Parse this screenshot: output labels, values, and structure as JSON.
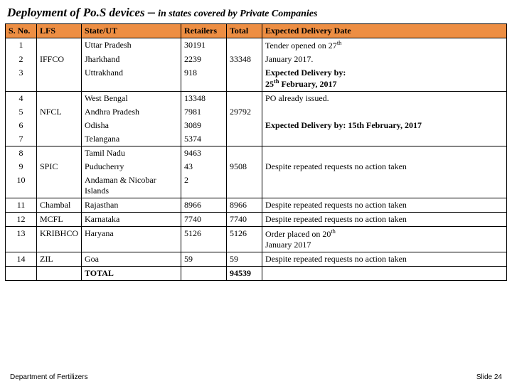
{
  "title_main": "Deployment of Po.S devices",
  "title_dash": "–",
  "title_sub": "in states covered by Private Companies",
  "headers": {
    "sno": "S. No.",
    "lfs": "LFS",
    "state": "State/UT",
    "retailers": "Retailers",
    "total": "Total",
    "expected": "Expected Delivery Date"
  },
  "rows": {
    "r1_sno": "1",
    "r1_state": "Uttar Pradesh",
    "r1_ret": "30191",
    "r2_sno": "2",
    "r2_state": "Jharkhand",
    "r2_ret": "2239",
    "r3_sno": "3",
    "r3_state": "Uttrakhand",
    "r3_ret": "918",
    "g1_lfs": "IFFCO",
    "g1_total": "33348",
    "g1_exp_l1": "Tender opened on 27",
    "g1_exp_l1s": "th",
    "g1_exp_l2": "January 2017.",
    "g1_exp_l3a": "Expected Delivery  by:",
    "g1_exp_l3b": "25",
    "g1_exp_l3bs": "th",
    "g1_exp_l3c": " February, 2017",
    "r4_sno": "4",
    "r4_state": "West Bengal",
    "r4_ret": "13348",
    "r5_sno": "5",
    "r5_state": "Andhra Pradesh",
    "r5_ret": "7981",
    "r6_sno": "6",
    "r6_state": "Odisha",
    "r6_ret": "3089",
    "r7_sno": "7",
    "r7_state": "Telangana",
    "r7_ret": "5374",
    "g2_lfs": "NFCL",
    "g2_total": "29792",
    "g2_exp_l1": "PO already issued.",
    "g2_exp_l2a": "Expected Delivery  by: 15th February, 2017",
    "r8_sno": "8",
    "r8_state": "Tamil Nadu",
    "r8_ret": "9463",
    "r9_sno": "9",
    "r9_state": "Puducherry",
    "r9_ret": "43",
    "r10_sno": "10",
    "r10_state": "Andaman & Nicobar Islands",
    "r10_ret": "2",
    "g3_lfs": "SPIC",
    "g3_total": "9508",
    "g3_exp": "Despite repeated requests no action taken",
    "r11_sno": "11",
    "r11_lfs": "Chambal",
    "r11_state": "Rajasthan",
    "r11_ret": "8966",
    "r11_total": "8966",
    "r11_exp": "Despite repeated requests no action taken",
    "r12_sno": "12",
    "r12_lfs": "MCFL",
    "r12_state": "Karnataka",
    "r12_ret": "7740",
    "r12_total": "7740",
    "r12_exp": "Despite repeated requests no action taken",
    "r13_sno": "13",
    "r13_lfs": "KRIBHCO",
    "r13_state": "Haryana",
    "r13_ret": "5126",
    "r13_total": "5126",
    "r13_exp_l1": "Order  placed on 20",
    "r13_exp_l1s": "th",
    "r13_exp_l2": "January 2017",
    "r14_sno": "14",
    "r14_lfs": "ZIL",
    "r14_state": "Goa",
    "r14_ret": "59",
    "r14_total": "59",
    "r14_exp": "Despite repeated requests no action taken",
    "total_label": "TOTAL",
    "total_value": "94539"
  },
  "footer_left": "Department of Fertilizers",
  "footer_right": "Slide 24"
}
